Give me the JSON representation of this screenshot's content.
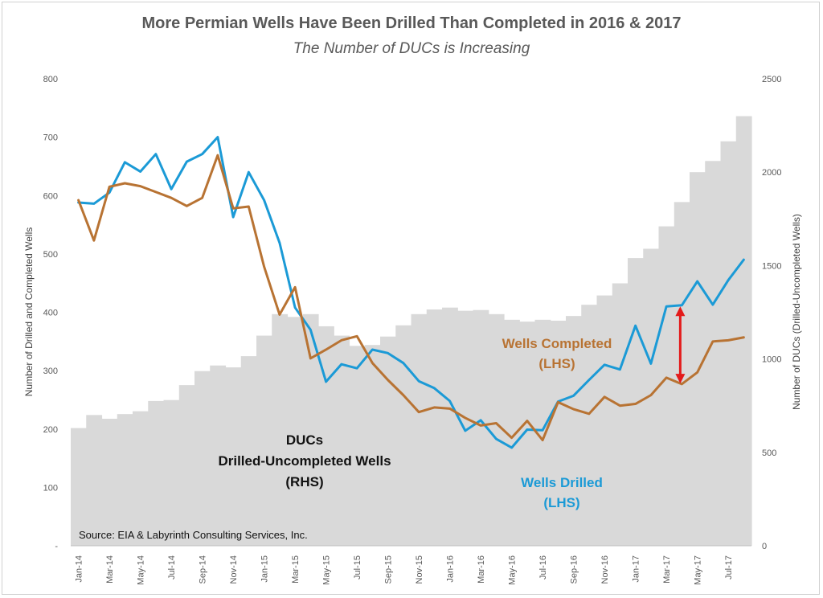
{
  "chart_data": {
    "type": "line",
    "title": "More Permian Wells Have Been Drilled Than Completed in 2016 & 2017",
    "subtitle": "The Number of DUCs is Increasing",
    "ylabel_left": "Number of Drilled and Completed Wells",
    "ylabel_right": "Number of DUCs (Drilled-Uncompleted Wells)",
    "ylim_left": [
      0,
      800
    ],
    "ylim_right": [
      0,
      2500
    ],
    "left_ticks": [
      "-",
      "100",
      "200",
      "300",
      "400",
      "500",
      "600",
      "700",
      "800"
    ],
    "right_ticks": [
      "0",
      "500",
      "1000",
      "1500",
      "2000",
      "2500"
    ],
    "x_tick_labels": [
      "Jan-14",
      "Mar-14",
      "May-14",
      "Jul-14",
      "Sep-14",
      "Nov-14",
      "Jan-15",
      "Mar-15",
      "May-15",
      "Jul-15",
      "Sep-15",
      "Nov-15",
      "Jan-16",
      "Mar-16",
      "May-16",
      "Jul-16",
      "Sep-16",
      "Nov-16",
      "Jan-17",
      "Mar-17",
      "May-17",
      "Jul-17"
    ],
    "months": [
      "Jan-14",
      "Feb-14",
      "Mar-14",
      "Apr-14",
      "May-14",
      "Jun-14",
      "Jul-14",
      "Aug-14",
      "Sep-14",
      "Oct-14",
      "Nov-14",
      "Dec-14",
      "Jan-15",
      "Feb-15",
      "Mar-15",
      "Apr-15",
      "May-15",
      "Jun-15",
      "Jul-15",
      "Aug-15",
      "Sep-15",
      "Oct-15",
      "Nov-15",
      "Dec-15",
      "Jan-16",
      "Feb-16",
      "Mar-16",
      "Apr-16",
      "May-16",
      "Jun-16",
      "Jul-16",
      "Aug-16",
      "Sep-16",
      "Oct-16",
      "Nov-16",
      "Dec-16",
      "Jan-17",
      "Feb-17",
      "Mar-17",
      "Apr-17",
      "May-17",
      "Jun-17",
      "Jul-17",
      "Aug-17"
    ],
    "series": [
      {
        "name": "DUCs Drilled-Uncompleted Wells (RHS)",
        "axis": "right",
        "type": "area",
        "color": "#d9d9d9",
        "values": [
          630,
          700,
          680,
          705,
          720,
          775,
          780,
          860,
          935,
          965,
          955,
          1015,
          1125,
          1240,
          1225,
          1240,
          1175,
          1125,
          1070,
          1075,
          1120,
          1180,
          1240,
          1265,
          1275,
          1258,
          1262,
          1240,
          1210,
          1200,
          1210,
          1205,
          1230,
          1290,
          1340,
          1405,
          1540,
          1590,
          1710,
          1840,
          2000,
          2060,
          2165,
          2300
        ]
      },
      {
        "name": "Wells Drilled (LHS)",
        "axis": "left",
        "type": "line",
        "color": "#1b9ad6",
        "values": [
          588,
          586,
          605,
          657,
          641,
          671,
          611,
          658,
          671,
          700,
          563,
          640,
          592,
          519,
          408,
          370,
          281,
          311,
          304,
          336,
          330,
          313,
          282,
          270,
          248,
          197,
          215,
          183,
          168,
          199,
          198,
          247,
          257,
          284,
          310,
          302,
          377,
          312,
          410,
          412,
          453,
          413,
          455,
          490
        ]
      },
      {
        "name": "Wells Completed (LHS)",
        "axis": "left",
        "type": "line",
        "color": "#b87333",
        "values": [
          592,
          523,
          615,
          621,
          616,
          606,
          596,
          582,
          596,
          669,
          578,
          581,
          478,
          396,
          443,
          321,
          336,
          352,
          359,
          313,
          284,
          258,
          229,
          237,
          235,
          219,
          206,
          210,
          185,
          214,
          181,
          246,
          234,
          226,
          255,
          240,
          243,
          258,
          288,
          277,
          297,
          350,
          352,
          357
        ]
      }
    ],
    "annotations": {
      "ducs_line1": "DUCs",
      "ducs_line2": "Drilled-Uncompleted Wells",
      "ducs_line3": "(RHS)",
      "completed_line1": "Wells Completed",
      "completed_line2": "(LHS)",
      "drilled_line1": "Wells Drilled",
      "drilled_line2": "(LHS)",
      "gap_arrow_month": "Apr-17",
      "gap_arrow_from": 278,
      "gap_arrow_to": 410,
      "gap_arrow_color": "#e31b1b",
      "source": "Source: EIA & Labyrinth Consulting Services, Inc."
    }
  }
}
